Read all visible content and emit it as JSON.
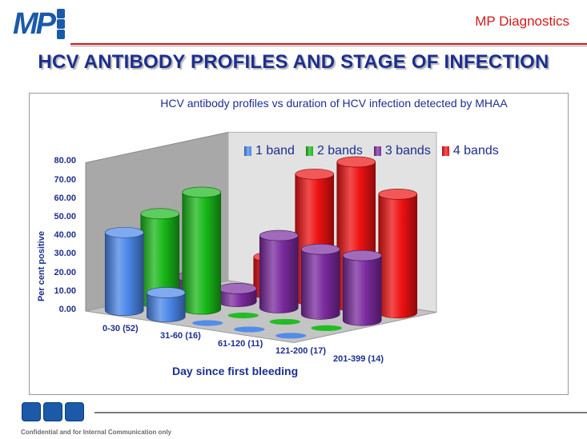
{
  "header": {
    "logo_text": "MP",
    "brand": "MP Diagnostics",
    "title": "HCV ANTIBODY PROFILES AND STAGE OF INFECTION"
  },
  "chart_data": {
    "type": "bar",
    "title": "HCV antibody profiles vs duration of HCV infection detected by MHAA",
    "ylabel": "Per cent positive",
    "xlabel": "Day since first bleeding",
    "ylim": [
      0,
      80
    ],
    "yticks": [
      "0.00",
      "10.00",
      "20.00",
      "30.00",
      "40.00",
      "50.00",
      "60.00",
      "70.00",
      "80.00"
    ],
    "categories": [
      "0-30 (52)",
      "31-60 (16)",
      "61-120 (11)",
      "121-200 (17)",
      "201-399 (14)"
    ],
    "legend_position": "top",
    "series": [
      {
        "name": "1 band",
        "color": "#4a86e8",
        "values": [
          42,
          13,
          0,
          0,
          0
        ]
      },
      {
        "name": "2 bands",
        "color": "#18b818",
        "values": [
          48,
          63,
          0,
          0,
          0
        ]
      },
      {
        "name": "3 bands",
        "color": "#7a2a9e",
        "values": [
          10,
          7,
          39,
          35,
          35
        ]
      },
      {
        "name": "4 bands",
        "color": "#ee1111",
        "values": [
          0,
          20,
          68,
          78,
          64
        ]
      }
    ]
  },
  "footer": {
    "text": "Confidential and for Internal Communication only"
  }
}
